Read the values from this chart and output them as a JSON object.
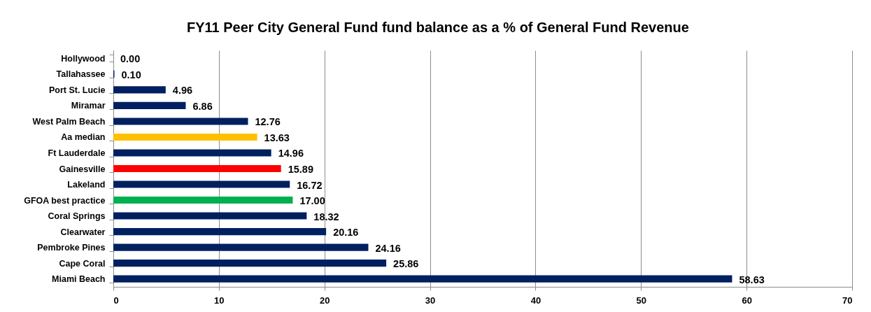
{
  "chart_data": {
    "type": "bar",
    "orientation": "horizontal",
    "title": "FY11 Peer City General Fund fund balance as a % of General Fund Revenue",
    "categories": [
      "Hollywood",
      "Tallahassee",
      "Port St. Lucie",
      "Miramar",
      "West Palm Beach",
      "Aa median",
      "Ft Lauderdale",
      "Gainesville",
      "Lakeland",
      "GFOA best practice",
      "Coral Springs",
      "Clearwater",
      "Pembroke Pines",
      "Cape Coral",
      "Miami Beach"
    ],
    "values": [
      0.0,
      0.1,
      4.96,
      6.86,
      12.76,
      13.63,
      14.96,
      15.89,
      16.72,
      17.0,
      18.32,
      20.16,
      24.16,
      25.86,
      58.63
    ],
    "value_labels": [
      "0.00",
      "0.10",
      "4.96",
      "6.86",
      "12.76",
      "13.63",
      "14.96",
      "15.89",
      "16.72",
      "17.00",
      "18.32",
      "20.16",
      "24.16",
      "25.86",
      "58.63"
    ],
    "colors": [
      "#002060",
      "#002060",
      "#002060",
      "#002060",
      "#002060",
      "#ffc000",
      "#002060",
      "#ff0000",
      "#002060",
      "#00b050",
      "#002060",
      "#002060",
      "#002060",
      "#002060",
      "#002060"
    ],
    "xlim": [
      0,
      70
    ],
    "xticks": [
      0,
      10,
      20,
      30,
      40,
      50,
      60,
      70
    ],
    "grid": "x"
  }
}
